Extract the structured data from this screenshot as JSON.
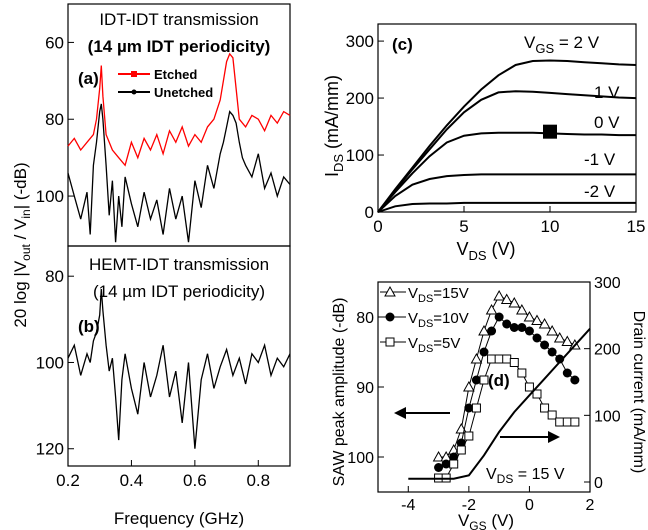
{
  "chart_data": [
    {
      "type": "line",
      "panel_label": "(a)",
      "header": [
        "IDT-IDT transmission",
        "(14 µm IDT periodicity)"
      ],
      "ylim": [
        113,
        50
      ],
      "yticks": [
        "60",
        "80",
        "100"
      ],
      "ytick_values": [
        60,
        80,
        100
      ],
      "xlim": [
        0.2,
        0.9
      ],
      "series": [
        {
          "name": "Etched",
          "color": "#ff0000",
          "marker": "square",
          "x": [
            0.2,
            0.22,
            0.24,
            0.26,
            0.28,
            0.29,
            0.3,
            0.305,
            0.31,
            0.32,
            0.34,
            0.36,
            0.38,
            0.4,
            0.42,
            0.44,
            0.46,
            0.48,
            0.5,
            0.52,
            0.54,
            0.56,
            0.58,
            0.6,
            0.62,
            0.64,
            0.66,
            0.68,
            0.7,
            0.71,
            0.72,
            0.73,
            0.74,
            0.76,
            0.78,
            0.8,
            0.82,
            0.84,
            0.86,
            0.88,
            0.9
          ],
          "y": [
            87,
            85,
            88,
            86,
            84,
            80,
            72,
            66,
            74,
            84,
            88,
            90,
            92,
            86,
            90,
            85,
            88,
            84,
            89,
            83,
            86,
            82,
            87,
            84,
            86,
            82,
            80,
            75,
            65,
            63,
            64,
            72,
            80,
            82,
            79,
            80,
            83,
            79,
            81,
            78,
            79
          ]
        },
        {
          "name": "Unetched",
          "color": "#000000",
          "marker": "dot",
          "x": [
            0.2,
            0.22,
            0.24,
            0.26,
            0.27,
            0.28,
            0.29,
            0.3,
            0.305,
            0.31,
            0.32,
            0.33,
            0.34,
            0.35,
            0.36,
            0.37,
            0.38,
            0.4,
            0.42,
            0.44,
            0.46,
            0.48,
            0.5,
            0.52,
            0.54,
            0.56,
            0.58,
            0.6,
            0.62,
            0.64,
            0.66,
            0.68,
            0.69,
            0.7,
            0.71,
            0.72,
            0.73,
            0.74,
            0.75,
            0.76,
            0.78,
            0.8,
            0.82,
            0.84,
            0.86,
            0.88,
            0.9
          ],
          "y": [
            94,
            100,
            106,
            99,
            110,
            92,
            86,
            78,
            76,
            80,
            92,
            105,
            96,
            112,
            100,
            108,
            95,
            102,
            108,
            99,
            106,
            101,
            110,
            98,
            106,
            100,
            112,
            96,
            103,
            92,
            98,
            89,
            86,
            82,
            78,
            79,
            81,
            86,
            90,
            92,
            95,
            89,
            98,
            94,
            100,
            95,
            97
          ]
        }
      ]
    },
    {
      "type": "line",
      "panel_label": "(b)",
      "header": [
        "HEMT-IDT transmission",
        "(14 µm IDT periodicity)"
      ],
      "ylim": [
        124,
        73
      ],
      "yticks": [
        "80",
        "100",
        "120"
      ],
      "ytick_values": [
        80,
        100,
        120
      ],
      "xlim": [
        0.2,
        0.9
      ],
      "xticks": [
        "0.2",
        "0.4",
        "0.6",
        "0.8"
      ],
      "xtick_values": [
        0.2,
        0.4,
        0.6,
        0.8
      ],
      "xlabel": "Frequency (GHz)",
      "series": [
        {
          "color": "#000000",
          "x": [
            0.2,
            0.22,
            0.24,
            0.26,
            0.27,
            0.28,
            0.29,
            0.3,
            0.305,
            0.31,
            0.32,
            0.33,
            0.34,
            0.35,
            0.36,
            0.37,
            0.38,
            0.4,
            0.42,
            0.44,
            0.46,
            0.48,
            0.5,
            0.52,
            0.54,
            0.56,
            0.58,
            0.6,
            0.62,
            0.64,
            0.66,
            0.68,
            0.7,
            0.72,
            0.74,
            0.76,
            0.78,
            0.8,
            0.82,
            0.84,
            0.86,
            0.88,
            0.9
          ],
          "y": [
            99,
            96,
            103,
            98,
            100,
            95,
            93,
            89,
            83,
            88,
            96,
            102,
            99,
            108,
            118,
            104,
            98,
            106,
            112,
            100,
            108,
            103,
            96,
            108,
            102,
            114,
            100,
            120,
            104,
            98,
            106,
            101,
            97,
            103,
            99,
            105,
            98,
            100,
            96,
            103,
            99,
            101,
            98
          ]
        }
      ]
    },
    {
      "type": "line",
      "panel_label": "(c)",
      "xlim": [
        0,
        15
      ],
      "ylim": [
        0,
        330
      ],
      "xticks": [
        "0",
        "5",
        "10",
        "15"
      ],
      "xtick_values": [
        0,
        5,
        10,
        15
      ],
      "yticks": [
        "0",
        "100",
        "200",
        "300"
      ],
      "ytick_values": [
        0,
        100,
        200,
        300
      ],
      "xlabel": "V_DS (V)",
      "ylabel": "I_DS (mA/mm)",
      "series": [
        {
          "name": "V_GS = 2 V",
          "label": "= 2 V",
          "x": [
            0,
            1,
            2,
            3,
            4,
            5,
            6,
            7,
            8,
            9,
            10,
            11,
            12,
            13,
            14,
            15
          ],
          "y": [
            0,
            40,
            78,
            116,
            152,
            185,
            215,
            240,
            258,
            265,
            266,
            265,
            263,
            261,
            259,
            258
          ]
        },
        {
          "name": "1 V",
          "label": "1 V",
          "x": [
            0,
            1,
            2,
            3,
            4,
            5,
            6,
            7,
            8,
            9,
            10,
            11,
            12,
            13,
            14,
            15
          ],
          "y": [
            0,
            38,
            75,
            110,
            145,
            175,
            197,
            210,
            212,
            211,
            209,
            207,
            205,
            203,
            201,
            200
          ]
        },
        {
          "name": "0 V",
          "label": "0 V",
          "x": [
            0,
            1,
            2,
            3,
            4,
            5,
            6,
            7,
            8,
            9,
            10,
            11,
            12,
            13,
            14,
            15
          ],
          "y": [
            0,
            35,
            68,
            98,
            122,
            134,
            138,
            139,
            139,
            139,
            138,
            137,
            136,
            136,
            135,
            135
          ]
        },
        {
          "name": "-1 V",
          "label": "-1 V",
          "x": [
            0,
            1,
            2,
            3,
            4,
            5,
            6,
            7,
            8,
            9,
            10,
            11,
            12,
            13,
            14,
            15
          ],
          "y": [
            0,
            28,
            48,
            58,
            63,
            65,
            66,
            66,
            66,
            66,
            66,
            66,
            66,
            66,
            66,
            66
          ]
        },
        {
          "name": "-2 V",
          "label": "-2 V",
          "x": [
            0,
            1,
            2,
            3,
            4,
            5,
            6,
            7,
            8,
            9,
            10,
            11,
            12,
            13,
            14,
            15
          ],
          "y": [
            0,
            10,
            14,
            15,
            15,
            16,
            16,
            16,
            16,
            16,
            16,
            16,
            16,
            16,
            16,
            16
          ]
        }
      ],
      "marker": {
        "x": 10,
        "y": 141
      },
      "vgs_prefix": "V",
      "vgs_sub": "GS"
    },
    {
      "type": "scatter",
      "panel_label": "(d)",
      "xlim": [
        -5,
        2
      ],
      "xticks": [
        "-4",
        "-2",
        "0",
        "2"
      ],
      "xtick_values": [
        -4,
        -2,
        0,
        2
      ],
      "xlabel": "V_GS (V)",
      "ylabel": "SAW peak amplitude (-dB)",
      "ylim": [
        105,
        75
      ],
      "yticks": [
        "80",
        "90",
        "100"
      ],
      "ytick_values": [
        80,
        90,
        100
      ],
      "ylabel2": "Drain current (mA/mm)",
      "ylim2": [
        0,
        300
      ],
      "yticks2": [
        "0",
        "100",
        "200",
        "300"
      ],
      "ytick2_values": [
        0,
        100,
        200,
        300
      ],
      "series": [
        {
          "name": "V_DS=15V",
          "marker": "triangle-open",
          "x": [
            -3,
            -2.75,
            -2.5,
            -2.25,
            -2,
            -1.75,
            -1.5,
            -1.25,
            -1,
            -0.75,
            -0.5,
            -0.25,
            0,
            0.25,
            0.5,
            0.75,
            1,
            1.25,
            1.5
          ],
          "y": [
            100,
            100,
            99,
            96,
            90,
            86,
            82,
            79,
            77,
            77.5,
            78,
            79,
            80,
            80.5,
            81,
            82,
            83,
            83.5,
            84
          ]
        },
        {
          "name": "V_DS=10V",
          "marker": "circle-filled",
          "x": [
            -3,
            -2.75,
            -2.5,
            -2.25,
            -2,
            -1.75,
            -1.5,
            -1.25,
            -1,
            -0.75,
            -0.5,
            -0.25,
            0,
            0.25,
            0.5,
            0.75,
            1,
            1.25,
            1.5
          ],
          "y": [
            101.5,
            101,
            100,
            98,
            93,
            89,
            85,
            82,
            80,
            81,
            81.5,
            81.5,
            82,
            83,
            84,
            85,
            86,
            88,
            89
          ]
        },
        {
          "name": "V_DS=5V",
          "marker": "square-open",
          "x": [
            -3,
            -2.75,
            -2.5,
            -2.25,
            -2,
            -1.75,
            -1.5,
            -1.25,
            -1,
            -0.75,
            -0.5,
            -0.25,
            0,
            0.25,
            0.5,
            0.75,
            1,
            1.25,
            1.5
          ],
          "y": [
            103,
            103,
            101,
            99,
            97,
            93,
            89,
            86,
            86,
            86,
            86.5,
            88,
            90,
            91,
            93,
            94,
            95,
            95,
            95
          ]
        },
        {
          "name": "Drain current",
          "axis": "right",
          "marker": "none",
          "x": [
            -4,
            -3,
            -2.5,
            -2,
            -1.5,
            -1,
            -0.5,
            0,
            0.5,
            1,
            1.5,
            2
          ],
          "y": [
            5,
            5,
            5,
            10,
            40,
            75,
            105,
            130,
            155,
            180,
            205,
            230
          ]
        }
      ],
      "legend": [
        {
          "sub": "DS",
          "value": "=15V"
        },
        {
          "sub": "DS",
          "value": "=10V"
        },
        {
          "sub": "DS",
          "value": "=5V"
        }
      ],
      "annotation": {
        "sub": "DS",
        "value": " = 15 V"
      }
    }
  ],
  "labels": {
    "yaxis_ab_prefix": "20 log |V",
    "yaxis_ab_sub1": "out",
    "yaxis_ab_mid": " / V",
    "yaxis_ab_sub2": "in",
    "yaxis_ab_suffix": "| (-dB)",
    "legend_etched": "Etched",
    "legend_unetched": "Unetched",
    "c_xlabel_main": "V",
    "c_xlabel_sub": "DS",
    "c_xlabel_unit": " (V)",
    "c_ylabel_main": "I",
    "c_ylabel_sub": "DS",
    "c_ylabel_unit": " (mA/mm)",
    "d_xlabel_main": "V",
    "d_xlabel_sub": "GS",
    "d_xlabel_unit": " (V)",
    "v_prefix": "V"
  }
}
